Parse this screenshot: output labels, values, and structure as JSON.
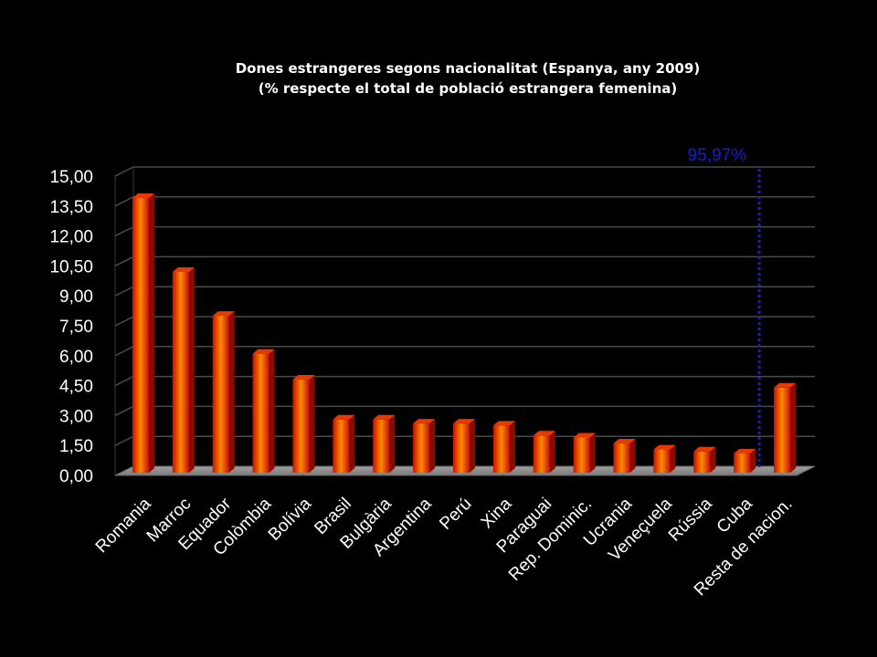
{
  "chart_data": {
    "type": "bar",
    "title": "Dones estrangeres segons nacionalitat (Espanya, any 2009)",
    "subtitle": "(% respecte el total de població estrangera femenina)",
    "categories": [
      "Romania",
      "Marroc",
      "Equador",
      "Colòmbia",
      "Bolívia",
      "Brasil",
      "Bulgària",
      "Argentina",
      "Perú",
      "Xina",
      "Paraguai",
      "Rep. Dominic.",
      "Ucrania",
      "Veneçuela",
      "Rússia",
      "Cuba",
      "Resta de nacion."
    ],
    "values": [
      13.9,
      10.2,
      8.0,
      6.1,
      4.8,
      2.8,
      2.8,
      2.6,
      2.6,
      2.5,
      2.0,
      1.9,
      1.6,
      1.3,
      1.2,
      1.1,
      4.4
    ],
    "ylim": [
      0,
      15
    ],
    "yticks": [
      "0,00",
      "1,50",
      "3,00",
      "4,50",
      "6,00",
      "7,50",
      "9,00",
      "10,50",
      "12,00",
      "13,50",
      "15,00"
    ],
    "xlabel": "",
    "ylabel": "",
    "grid": true,
    "annotation": {
      "text": "95,97%",
      "position_between": [
        "Cuba",
        "Resta de nacion."
      ],
      "color": "#1a1ad6"
    },
    "colors": {
      "bar_light": "#ff8a00",
      "bar_dark": "#c81000",
      "background": "#000000",
      "axis_text": "#ffffff"
    }
  }
}
